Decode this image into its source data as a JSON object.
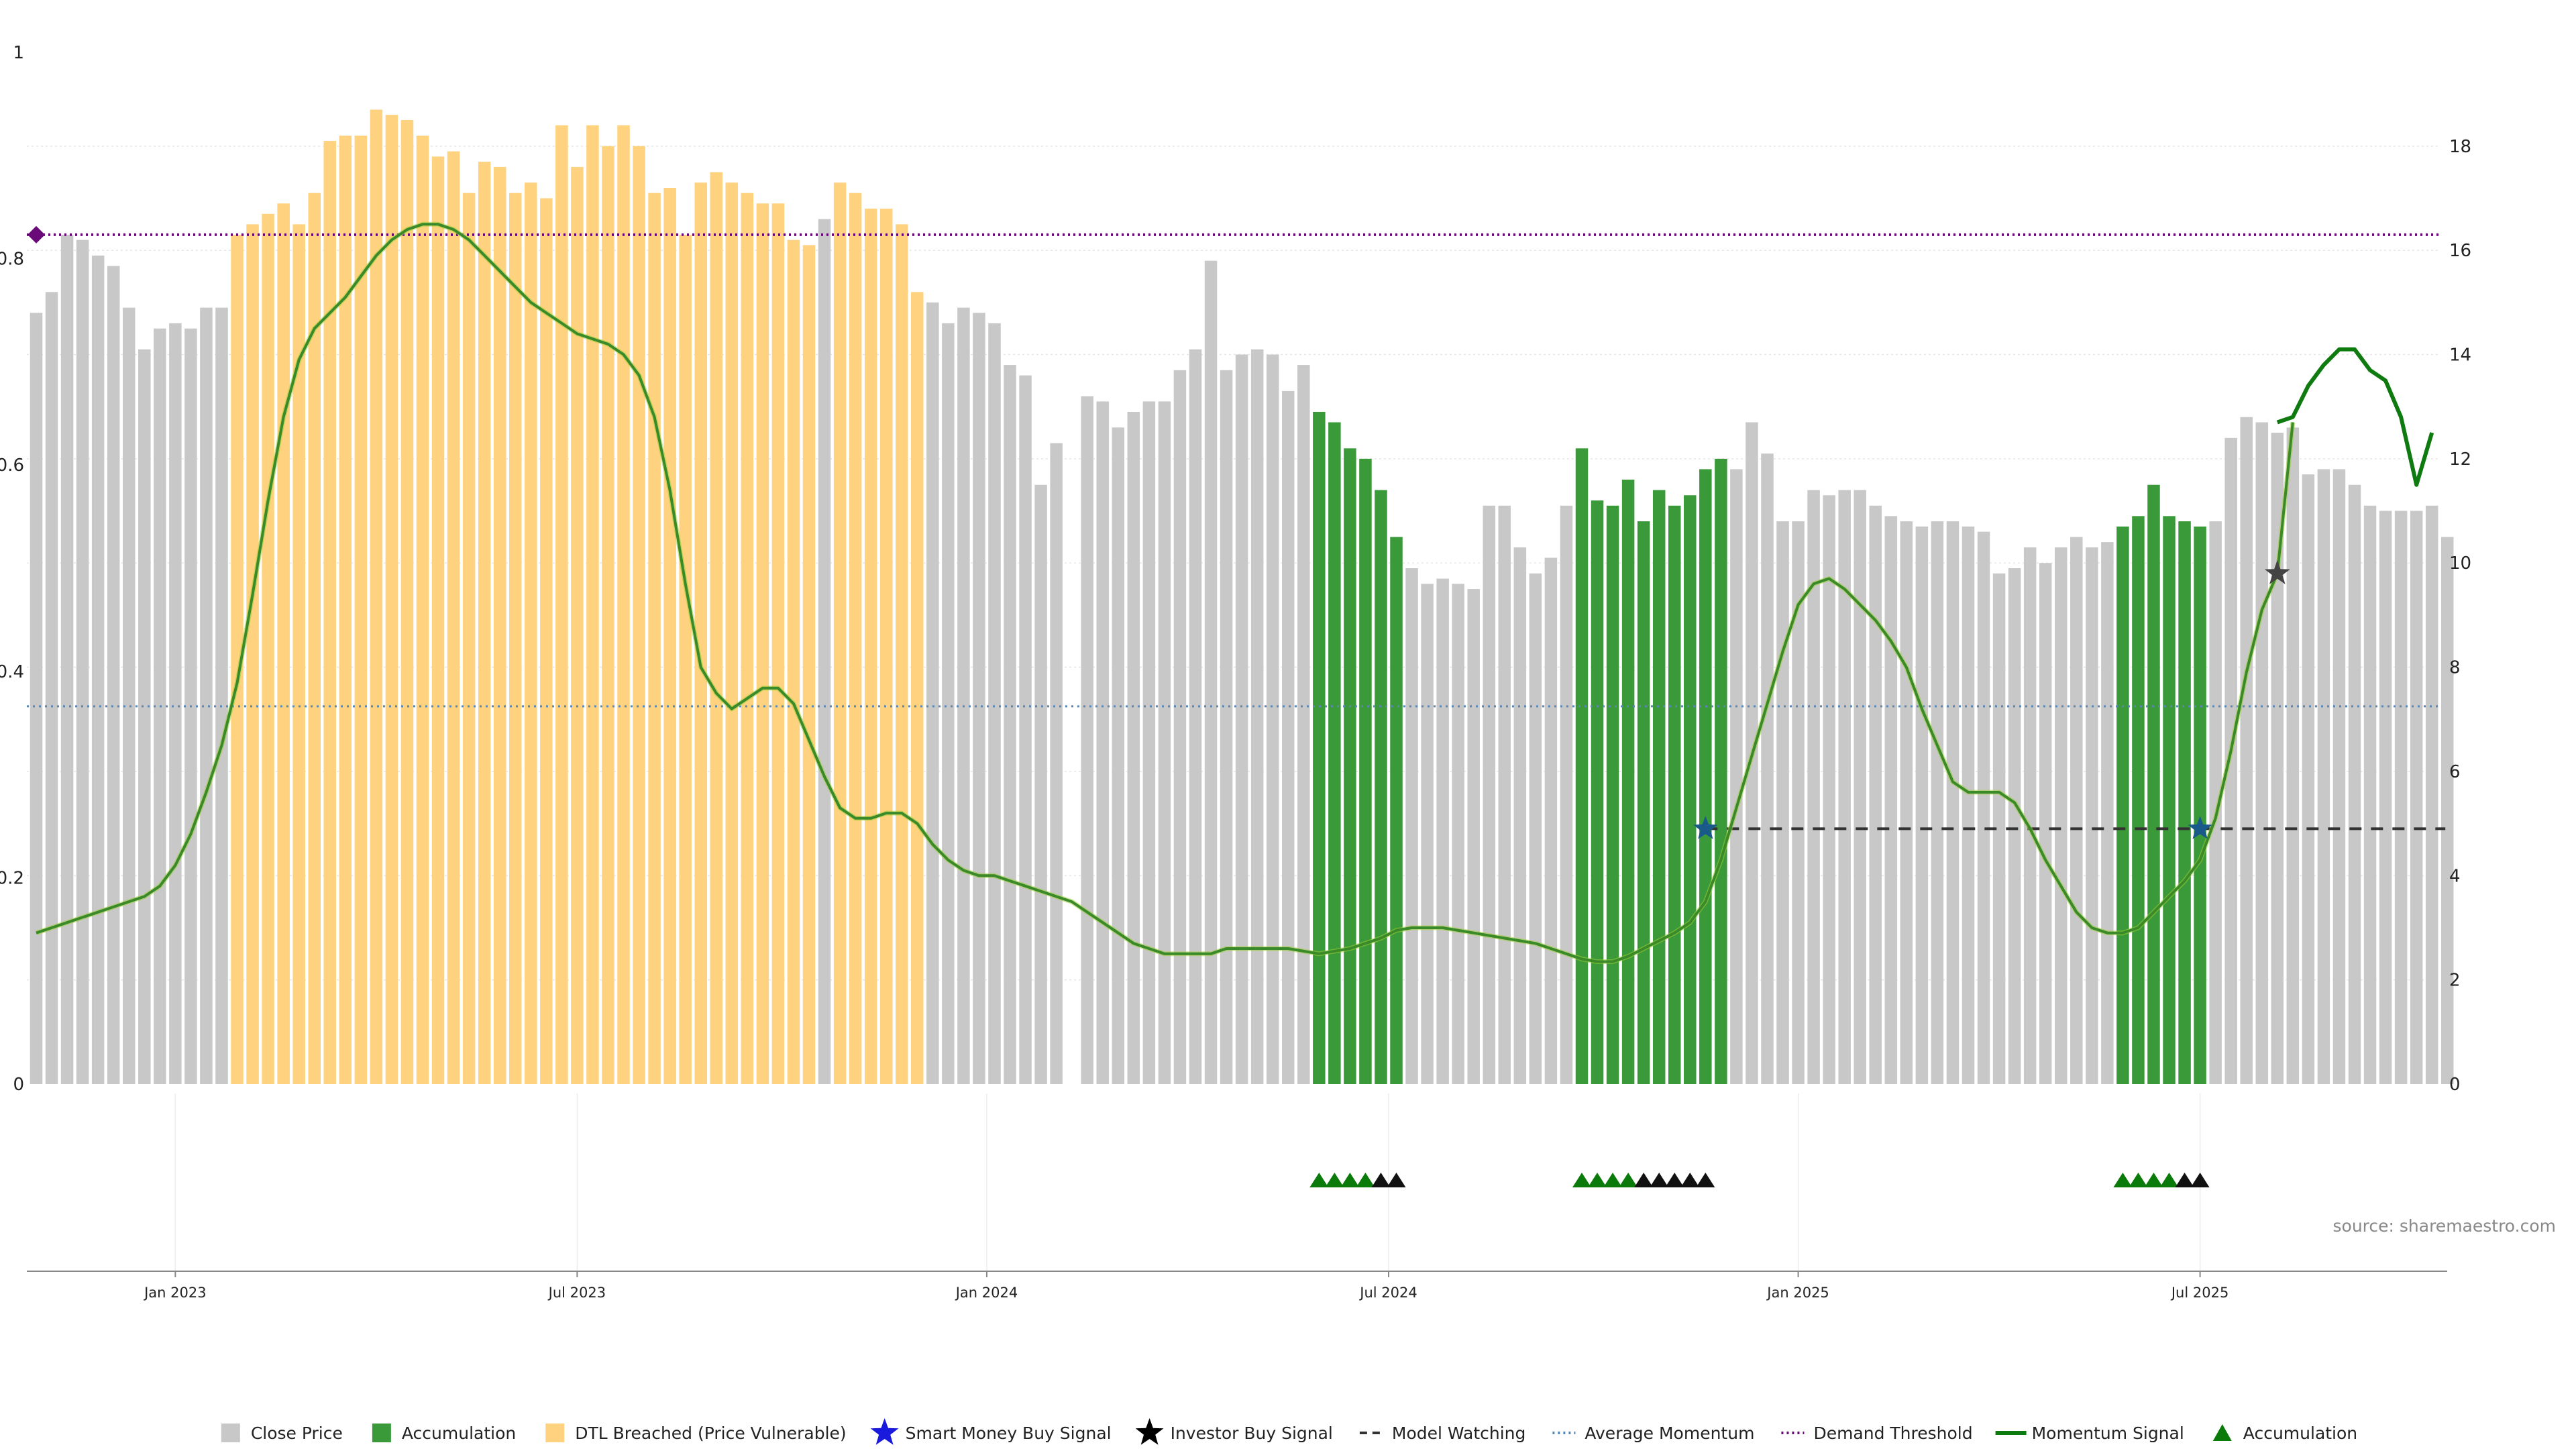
{
  "chart_data": {
    "type": "bar",
    "source": "source: sharemaestro.com",
    "x_axis": {
      "ticks": [
        {
          "label": "Jan 2023",
          "index": 9
        },
        {
          "label": "Jul 2023",
          "index": 35
        },
        {
          "label": "Jan 2024",
          "index": 61.5
        },
        {
          "label": "Jul 2024",
          "index": 87.5
        },
        {
          "label": "Jan 2025",
          "index": 114
        },
        {
          "label": "Jul 2025",
          "index": 140
        }
      ]
    },
    "y_left": {
      "ylim": [
        0,
        1
      ],
      "ticks": [
        "0",
        "0.2",
        "0.4",
        "0.6",
        "0.8",
        "1"
      ]
    },
    "y_right": {
      "ylim": [
        0,
        19.8
      ],
      "ticks": [
        "0",
        "2",
        "4",
        "6",
        "8",
        "10",
        "12",
        "14",
        "16",
        "18"
      ]
    },
    "colors": {
      "close": "#c8c8c8",
      "accumulation": "#3a9a3a",
      "dtl": "#ffd27f",
      "momentum": "#3a8a2a",
      "momentum_bright": "#0f7a0f",
      "model_watching": "#333333",
      "average_momentum": "#5a87b0",
      "demand_threshold": "#6a0a78",
      "smart_money": "#1a5a8a",
      "investor": "#444444",
      "tri_green": "#0a7a0a",
      "tri_black": "#111111"
    },
    "series": [
      {
        "name": "Close Price",
        "note": "bar heights (right-axis units); state per bar: g=gray, a=accumulation, d=DTL breached",
        "values": [
          14.8,
          15.2,
          16.3,
          16.2,
          15.9,
          15.7,
          14.9,
          14.1,
          14.5,
          14.6,
          14.5,
          14.9,
          14.9,
          16.3,
          16.5,
          16.7,
          16.9,
          16.5,
          17.1,
          18.1,
          18.2,
          18.2,
          18.7,
          18.6,
          18.5,
          18.2,
          17.8,
          17.9,
          17.1,
          17.7,
          17.6,
          17.1,
          17.3,
          17.0,
          18.4,
          17.6,
          18.4,
          18.0,
          18.4,
          18.0,
          17.1,
          17.2,
          16.3,
          17.3,
          17.5,
          17.3,
          17.1,
          16.9,
          16.9,
          16.2,
          16.1,
          16.6,
          17.3,
          17.1,
          16.8,
          16.8,
          16.5,
          15.2,
          15.0,
          14.6,
          14.9,
          14.8,
          14.6,
          13.8,
          13.6,
          11.5,
          12.3,
          0,
          13.2,
          13.1,
          12.6,
          12.9,
          13.1,
          13.1,
          13.7,
          14.1,
          15.8,
          13.7,
          14.0,
          14.1,
          14.0,
          13.3,
          13.8,
          12.9,
          12.7,
          12.2,
          12.0,
          11.4,
          10.5,
          9.9,
          9.6,
          9.7,
          9.6,
          9.5,
          11.1,
          11.1,
          10.3,
          9.8,
          10.1,
          11.1,
          12.2,
          11.2,
          11.1,
          11.6,
          10.8,
          11.4,
          11.1,
          11.3,
          11.8,
          12.0,
          11.8,
          12.7,
          12.1,
          10.8,
          10.8,
          11.4,
          11.3,
          11.4,
          11.4,
          11.1,
          10.9,
          10.8,
          10.7,
          10.8,
          10.8,
          10.7,
          10.6,
          9.8,
          9.9,
          10.3,
          10.0,
          10.3,
          10.5,
          10.3,
          10.4,
          10.7,
          10.9,
          11.5,
          10.9,
          10.8,
          10.7,
          10.8,
          12.4,
          12.8,
          12.7,
          12.5,
          12.6,
          11.7,
          11.8,
          11.8,
          11.5,
          11.1,
          11.0,
          11.0,
          11.0,
          11.1,
          10.5
        ],
        "states": "ggggggggggggg"
      },
      {
        "name": "Accumulation"
      },
      {
        "name": "DTL Breached (Price Vulnerable)"
      },
      {
        "name": "Smart Money Buy Signal",
        "points": [
          {
            "index": 108,
            "value": 4.9
          },
          {
            "index": 140,
            "value": 4.9
          }
        ]
      },
      {
        "name": "Investor Buy Signal",
        "points": [
          {
            "index": 145,
            "value": 9.8
          }
        ]
      },
      {
        "name": "Model Watching",
        "from_index": 108,
        "to_index": 155,
        "value": 4.9
      },
      {
        "name": "Average Momentum",
        "value": 7.25
      },
      {
        "name": "Demand Threshold",
        "value": 16.3
      },
      {
        "name": "Momentum Signal",
        "values": [
          2.9,
          3.0,
          3.1,
          3.2,
          3.3,
          3.4,
          3.5,
          3.6,
          3.8,
          4.2,
          4.8,
          5.6,
          6.5,
          7.7,
          9.4,
          11.2,
          12.8,
          13.9,
          14.5,
          14.8,
          15.1,
          15.5,
          15.9,
          16.2,
          16.4,
          16.5,
          16.5,
          16.4,
          16.2,
          15.9,
          15.6,
          15.3,
          15.0,
          14.8,
          14.6,
          14.4,
          14.3,
          14.2,
          14.0,
          13.6,
          12.8,
          11.4,
          9.6,
          8.0,
          7.5,
          7.2,
          7.4,
          7.6,
          7.6,
          7.3,
          6.6,
          5.9,
          5.3,
          5.1,
          5.1,
          5.2,
          5.2,
          5.0,
          4.6,
          4.3,
          4.1,
          4.0,
          4.0,
          3.9,
          3.8,
          3.7,
          3.6,
          3.5,
          3.3,
          3.1,
          2.9,
          2.7,
          2.6,
          2.5,
          2.5,
          2.5,
          2.5,
          2.6,
          2.6,
          2.6,
          2.6,
          2.6,
          2.55,
          2.5,
          2.55,
          2.6,
          2.7,
          2.8,
          2.95,
          3.0,
          3.0,
          3.0,
          2.95,
          2.9,
          2.85,
          2.8,
          2.75,
          2.7,
          2.6,
          2.5,
          2.4,
          2.35,
          2.35,
          2.45,
          2.6,
          2.75,
          2.9,
          3.1,
          3.5,
          4.3,
          5.3,
          6.3,
          7.3,
          8.3,
          9.2,
          9.6,
          9.7,
          9.5,
          9.2,
          8.9,
          8.5,
          8.0,
          7.2,
          6.5,
          5.8,
          5.6,
          5.6,
          5.6,
          5.4,
          4.9,
          4.3,
          3.8,
          3.3,
          3.0,
          2.9,
          2.9,
          3.0,
          3.3,
          3.6,
          3.9,
          4.3,
          5.1,
          6.4,
          7.9,
          9.1,
          9.8,
          12.7
        ],
        "bright_values": [
          12.7,
          12.8,
          13.4,
          13.8,
          14.1,
          14.1,
          13.7,
          13.5,
          12.8,
          11.5,
          12.5
        ],
        "bright_start_index": 145
      },
      {
        "name": "Accumulation",
        "note": "triangle markers below chart (g=green, k=black)",
        "groups": [
          {
            "start_index": 83,
            "pattern": "ggggkk"
          },
          {
            "start_index": 100,
            "pattern": "ggggkkkkk"
          },
          {
            "start_index": 135,
            "pattern": "ggggkk"
          }
        ]
      }
    ],
    "bar_states": {
      "g_ranges": [
        [
          0,
          12
        ],
        [
          51,
          51
        ],
        [
          58,
          82
        ],
        [
          89,
          99
        ],
        [
          110,
          134
        ],
        [
          141,
          155
        ]
      ],
      "a_ranges": [
        [
          83,
          88
        ],
        [
          100,
          109
        ],
        [
          135,
          140
        ]
      ],
      "d_ranges": [
        [
          13,
          50
        ],
        [
          52,
          57
        ]
      ]
    }
  },
  "legend": [
    {
      "label": "Close Price",
      "kind": "square",
      "color_key": "close"
    },
    {
      "label": "Accumulation",
      "kind": "square",
      "color_key": "accumulation"
    },
    {
      "label": "DTL Breached (Price Vulnerable)",
      "kind": "square",
      "color_key": "dtl"
    },
    {
      "label": "Smart Money Buy Signal",
      "kind": "star",
      "color_key": "smart_money"
    },
    {
      "label": "Investor Buy Signal",
      "kind": "star",
      "color_key": "investor"
    },
    {
      "label": "Model Watching",
      "kind": "dash",
      "color_key": "model_watching"
    },
    {
      "label": "Average Momentum",
      "kind": "dot",
      "color_key": "average_momentum"
    },
    {
      "label": "Demand Threshold",
      "kind": "dot",
      "color_key": "demand_threshold"
    },
    {
      "label": "Momentum Signal",
      "kind": "line",
      "color_key": "momentum_bright"
    },
    {
      "label": "Accumulation",
      "kind": "triangle",
      "color_key": "tri_green"
    }
  ]
}
